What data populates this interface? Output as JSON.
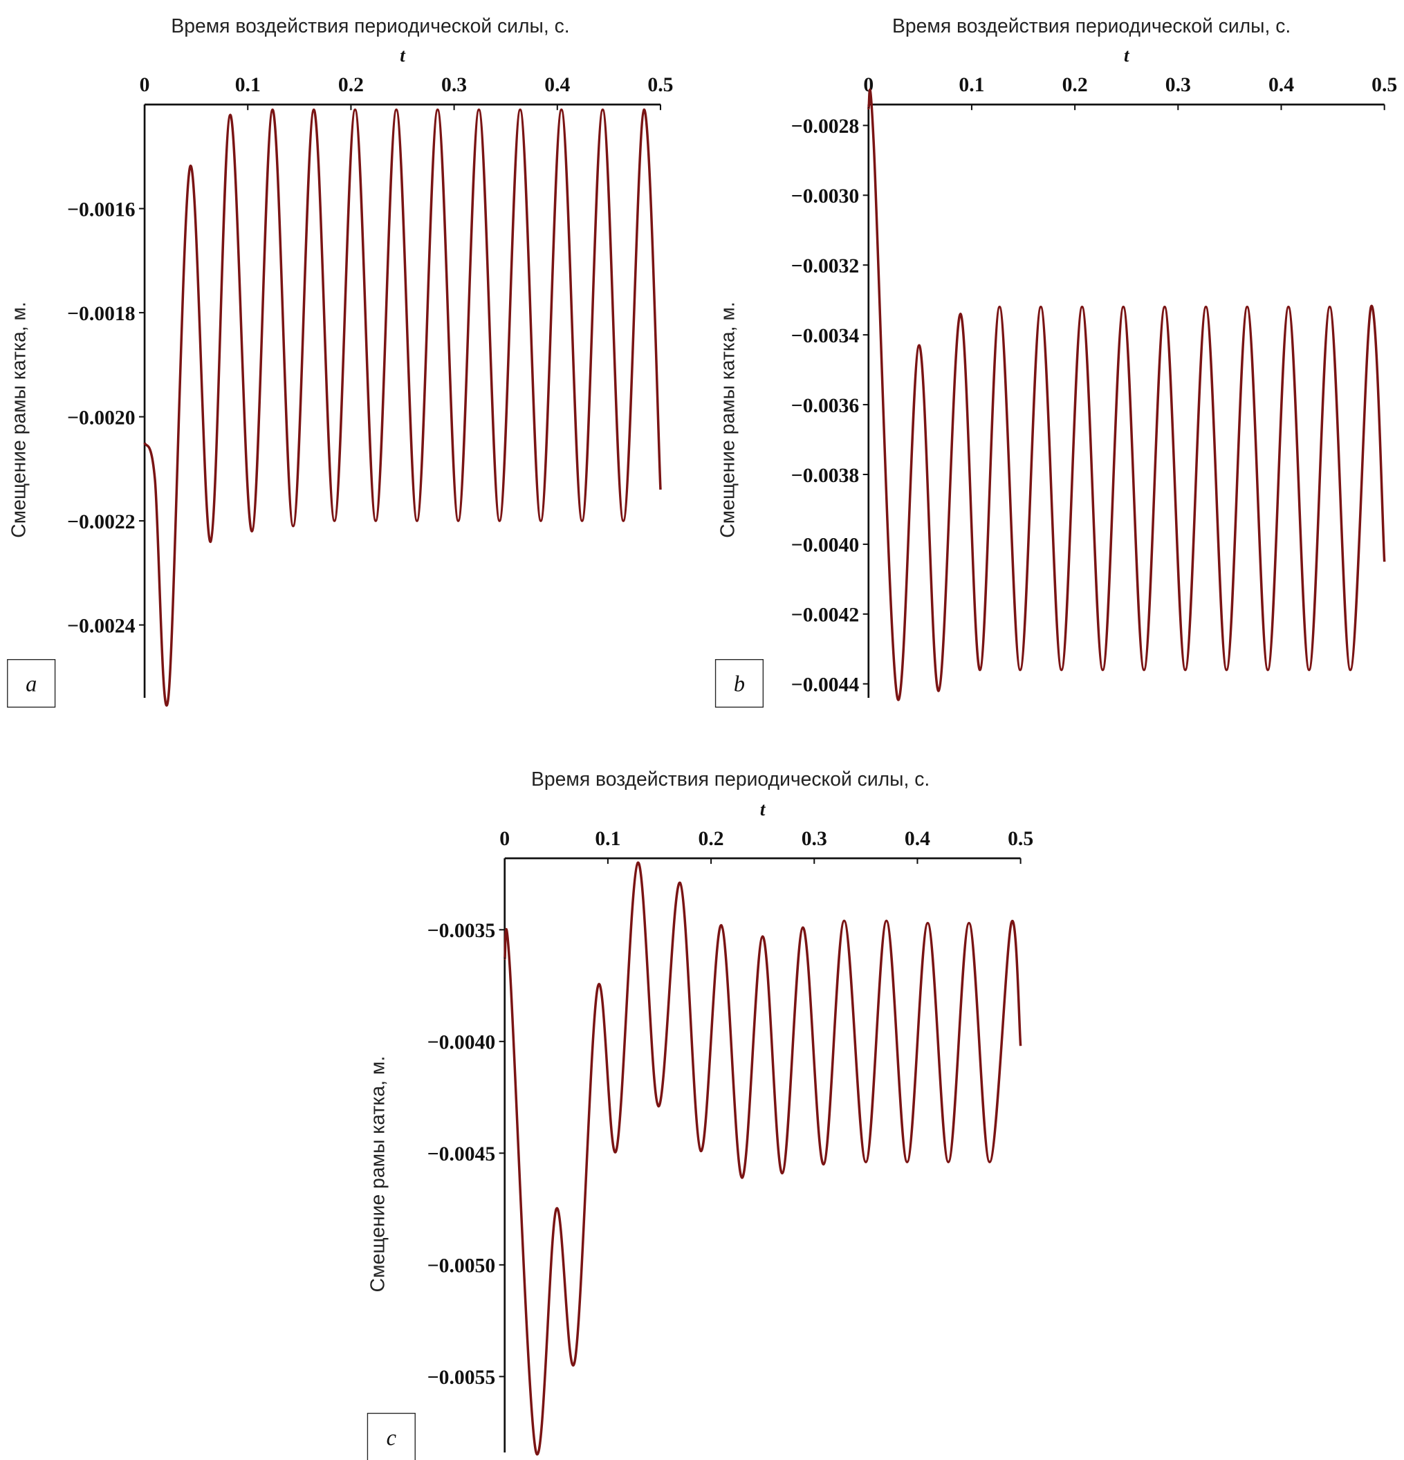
{
  "chart_data": [
    {
      "type": "line",
      "title": "Время воздействия периодической силы, с.",
      "x_label": "t",
      "y_label": "Смещение рамы катка, м.",
      "panel_label": "a",
      "color": "#7a1414",
      "x": [
        0,
        0.01,
        0.023,
        0.044,
        0.064,
        0.083,
        0.104,
        0.124,
        0.144,
        0.164,
        0.184,
        0.204,
        0.224,
        0.244,
        0.264,
        0.284,
        0.304,
        0.324,
        0.344,
        0.364,
        0.384,
        0.404,
        0.424,
        0.444,
        0.464,
        0.484,
        0.5
      ],
      "values": [
        -0.00205,
        -0.00212,
        -0.00254,
        -0.00152,
        -0.00224,
        -0.00142,
        -0.00222,
        -0.00141,
        -0.00221,
        -0.00141,
        -0.0022,
        -0.00141,
        -0.0022,
        -0.00141,
        -0.0022,
        -0.00141,
        -0.0022,
        -0.00141,
        -0.0022,
        -0.00141,
        -0.0022,
        -0.00141,
        -0.0022,
        -0.00141,
        -0.0022,
        -0.00141,
        -0.00214
      ],
      "xlim": [
        0,
        0.5
      ],
      "xticks": [
        0,
        0.1,
        0.2,
        0.3,
        0.4,
        0.5
      ],
      "ylim": [
        -0.00254,
        -0.0014
      ],
      "yticks": [
        {
          "value": -0.0016,
          "label": "−0.0016"
        },
        {
          "value": -0.0018,
          "label": "−0.0018"
        },
        {
          "value": -0.002,
          "label": "−0.0020"
        },
        {
          "value": -0.0022,
          "label": "−0.0022"
        },
        {
          "value": -0.0024,
          "label": "−0.0024"
        }
      ]
    },
    {
      "type": "line",
      "title": "Время воздействия периодической силы, с.",
      "x_label": "t",
      "y_label": "Смещение рамы катка, м.",
      "panel_label": "b",
      "color": "#7a1414",
      "x": [
        0,
        0.005,
        0.028,
        0.049,
        0.068,
        0.089,
        0.108,
        0.127,
        0.147,
        0.167,
        0.187,
        0.207,
        0.227,
        0.247,
        0.267,
        0.287,
        0.307,
        0.327,
        0.347,
        0.367,
        0.387,
        0.407,
        0.427,
        0.447,
        0.467,
        0.487,
        0.5
      ],
      "values": [
        -0.00275,
        -0.00285,
        -0.00444,
        -0.00343,
        -0.00442,
        -0.00334,
        -0.00436,
        -0.00332,
        -0.00436,
        -0.00332,
        -0.00436,
        -0.00332,
        -0.00436,
        -0.00332,
        -0.00436,
        -0.00332,
        -0.00436,
        -0.00332,
        -0.00436,
        -0.00332,
        -0.00436,
        -0.00332,
        -0.00436,
        -0.00332,
        -0.00436,
        -0.00332,
        -0.00405
      ],
      "xlim": [
        0,
        0.5
      ],
      "xticks": [
        0,
        0.1,
        0.2,
        0.3,
        0.4,
        0.5
      ],
      "ylim": [
        -0.00444,
        -0.00274
      ],
      "yticks": [
        {
          "value": -0.0028,
          "label": "−0.0028"
        },
        {
          "value": -0.003,
          "label": "−0.0030"
        },
        {
          "value": -0.0032,
          "label": "−0.0032"
        },
        {
          "value": -0.0034,
          "label": "−0.0034"
        },
        {
          "value": -0.0036,
          "label": "−0.0036"
        },
        {
          "value": -0.0038,
          "label": "−0.0038"
        },
        {
          "value": -0.004,
          "label": "−0.0040"
        },
        {
          "value": -0.0042,
          "label": "−0.0042"
        },
        {
          "value": -0.0044,
          "label": "−0.0044"
        }
      ]
    },
    {
      "type": "line",
      "title": "Время воздействия периодической силы, с.",
      "x_label": "t",
      "y_label": "Смещение рамы катка, м.",
      "panel_label": "c",
      "color": "#7a1414",
      "x": [
        0,
        0.005,
        0.03,
        0.05,
        0.068,
        0.09,
        0.108,
        0.129,
        0.149,
        0.17,
        0.19,
        0.21,
        0.23,
        0.25,
        0.269,
        0.289,
        0.309,
        0.329,
        0.35,
        0.37,
        0.39,
        0.41,
        0.43,
        0.45,
        0.47,
        0.491,
        0.5
      ],
      "values": [
        -0.00363,
        -0.00367,
        -0.00583,
        -0.00475,
        -0.00543,
        -0.00376,
        -0.00449,
        -0.0032,
        -0.00429,
        -0.00329,
        -0.00449,
        -0.00348,
        -0.00461,
        -0.00353,
        -0.00459,
        -0.00349,
        -0.00455,
        -0.00346,
        -0.00454,
        -0.00346,
        -0.00454,
        -0.00347,
        -0.00454,
        -0.00347,
        -0.00454,
        -0.00347,
        -0.00402
      ],
      "xlim": [
        0,
        0.5
      ],
      "xticks": [
        0,
        0.1,
        0.2,
        0.3,
        0.4,
        0.5
      ],
      "ylim": [
        -0.00584,
        -0.00318
      ],
      "yticks": [
        {
          "value": -0.0035,
          "label": "−0.0035"
        },
        {
          "value": -0.004,
          "label": "−0.0040"
        },
        {
          "value": -0.0045,
          "label": "−0.0045"
        },
        {
          "value": -0.005,
          "label": "−0.0050"
        },
        {
          "value": -0.0055,
          "label": "−0.0055"
        }
      ]
    }
  ]
}
